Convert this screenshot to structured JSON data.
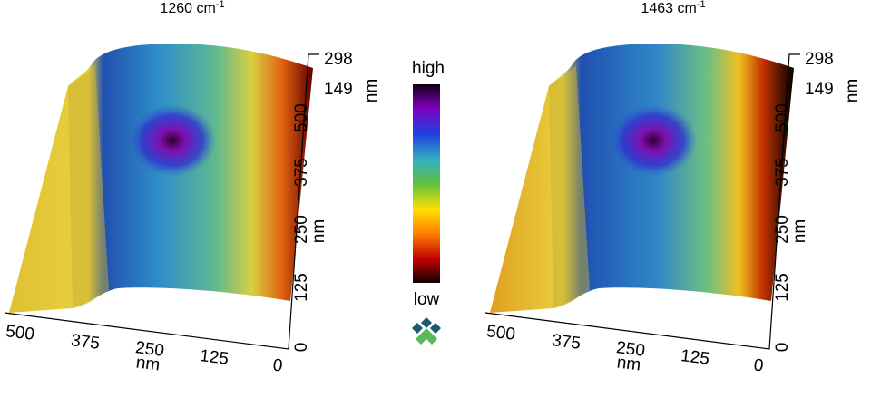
{
  "panels": [
    {
      "title": {
        "text": "1260 cm",
        "sup": "-1"
      },
      "x_axis": {
        "ticks": [
          "500",
          "375",
          "250",
          "125",
          "0"
        ],
        "label": "nm"
      },
      "y_axis": {
        "ticks": [
          "0",
          "125",
          "250",
          "375",
          "500"
        ],
        "label": "nm"
      },
      "z_axis": {
        "ticks": [
          "298",
          "149"
        ],
        "label": "nm"
      }
    },
    {
      "title": {
        "text": "1463 cm",
        "sup": "-1"
      },
      "x_axis": {
        "ticks": [
          "500",
          "375",
          "250",
          "125",
          "0"
        ],
        "label": "nm"
      },
      "y_axis": {
        "ticks": [
          "0",
          "125",
          "250",
          "375",
          "500"
        ],
        "label": "nm"
      },
      "z_axis": {
        "ticks": [
          "298",
          "149"
        ],
        "label": "nm"
      }
    }
  ],
  "colorbar": {
    "high": "high",
    "low": "low"
  }
}
